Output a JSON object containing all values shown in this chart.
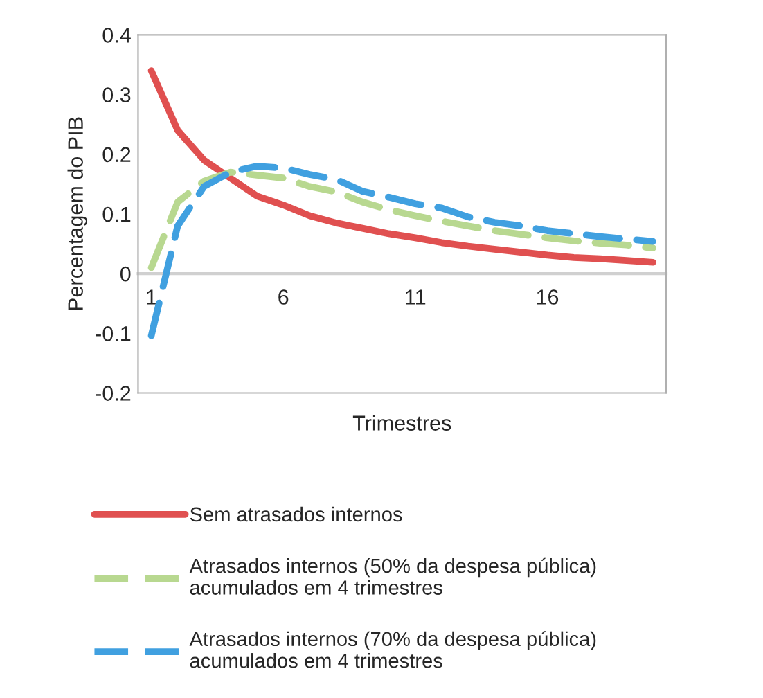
{
  "chart_data": {
    "type": "line",
    "xlabel": "Trimestres",
    "ylabel": "Percentagem do PIB",
    "x": [
      1,
      2,
      3,
      4,
      5,
      6,
      7,
      8,
      9,
      10,
      11,
      12,
      13,
      14,
      15,
      16,
      17,
      18,
      19,
      20
    ],
    "xlim": [
      0.5,
      20.5
    ],
    "xticks": [
      1,
      6,
      11,
      16
    ],
    "ylim": [
      -0.2,
      0.4
    ],
    "yticks": [
      -0.2,
      -0.1,
      0,
      0.1,
      0.2,
      0.3,
      0.4
    ],
    "grid": false,
    "legend": "bottom",
    "marker": "none",
    "series": [
      {
        "name": "Sem atrasados internos",
        "color": "#e05050",
        "line_style": "solid",
        "values": [
          0.34,
          0.24,
          0.19,
          0.16,
          0.13,
          0.115,
          0.097,
          0.085,
          0.076,
          0.067,
          0.06,
          0.052,
          0.046,
          0.041,
          0.036,
          0.031,
          0.027,
          0.025,
          0.022,
          0.019
        ]
      },
      {
        "name": "Atrasados internos (50% da despesa pública)\nacumulados em 4 trimestres",
        "color": "#b8d890",
        "line_style": "dashed",
        "values": [
          0.01,
          0.12,
          0.155,
          0.17,
          0.165,
          0.16,
          0.146,
          0.137,
          0.12,
          0.107,
          0.097,
          0.088,
          0.08,
          0.072,
          0.066,
          0.06,
          0.055,
          0.051,
          0.048,
          0.043
        ]
      },
      {
        "name": "Atrasados internos (70% da despesa pública)\nacumulados em 4 trimestres",
        "color": "#40a0e0",
        "line_style": "dashed",
        "values": [
          -0.104,
          0.08,
          0.146,
          0.17,
          0.18,
          0.177,
          0.166,
          0.158,
          0.138,
          0.128,
          0.117,
          0.11,
          0.095,
          0.086,
          0.08,
          0.072,
          0.067,
          0.062,
          0.058,
          0.054
        ]
      }
    ]
  }
}
